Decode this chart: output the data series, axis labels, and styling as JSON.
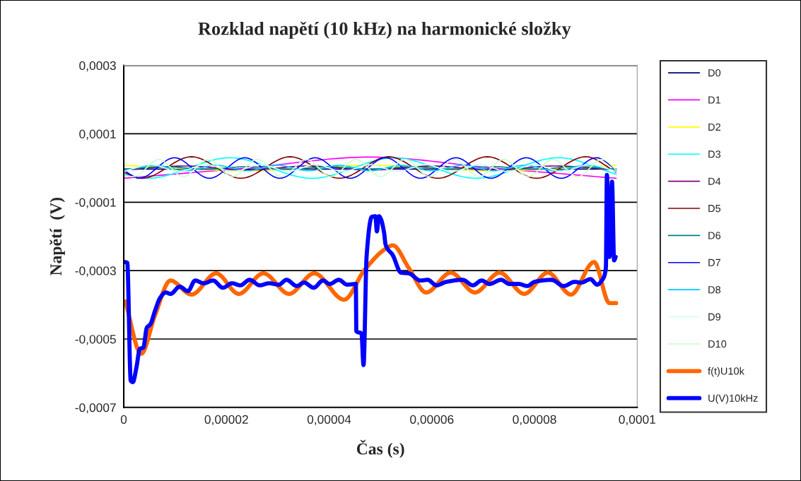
{
  "chart_data": {
    "type": "line",
    "title": "Rozklad napětí (10 kHz) na harmonické složky",
    "xlabel": "Čas (s)",
    "ylabel": "Napětí  (V)",
    "xlim": [
      0,
      0.0001
    ],
    "xticks": [
      0,
      {
        "value": 2e-05,
        "label": "0,00002"
      },
      {
        "value": 4e-05,
        "label": "0,00004"
      },
      {
        "value": 6e-05,
        "label": "0,00006"
      },
      {
        "value": 8e-05,
        "label": "0,00008"
      },
      {
        "value": 0.0001,
        "label": "0,0001"
      }
    ],
    "ylim": [
      -0.0007,
      0.0003
    ],
    "yticks": [
      {
        "value": -0.0007,
        "label": "-0,0007"
      },
      {
        "value": -0.0005,
        "label": "-0,0005"
      },
      {
        "value": -0.0003,
        "label": "-0,0003"
      },
      {
        "value": -0.0001,
        "label": "-0,0001"
      },
      {
        "value": 0.0001,
        "label": "0,0001"
      },
      {
        "value": 0.0003,
        "label": "0,0003"
      }
    ],
    "grid": "y",
    "legend": "right",
    "marker": "none",
    "line_style": "solid",
    "series": [
      {
        "name": "D0",
        "color": "#000080",
        "x": [
          0,
          9.59e-05
        ],
        "values": [
          -3e-06,
          -3e-06
        ]
      },
      {
        "name": "D1",
        "color": "#ff00ff",
        "x": [
          0,
          2.4e-05,
          4.8e-05,
          7.2e-05,
          9.59e-05
        ],
        "values": [
          -3e-05,
          0,
          3.2e-05,
          0,
          -3e-05
        ]
      },
      {
        "name": "D2",
        "color": "#ffff00",
        "x": [
          0,
          2.4e-05,
          4.8e-05,
          7.2e-05,
          9.59e-05
        ],
        "values": [
          8e-06,
          -8e-06,
          8e-06,
          -8e-06,
          8e-06
        ]
      },
      {
        "name": "D3",
        "color": "#00ffff",
        "x": [
          3e-07,
          4.7e-06,
          2.07e-05,
          3.67e-05,
          5.27e-05,
          6.87e-05,
          8.47e-05,
          9.59e-05
        ],
        "values": [
          -2e-05,
          -3e-05,
          3e-05,
          -3e-05,
          3e-05,
          -3e-05,
          3e-05,
          -1.8e-05
        ]
      },
      {
        "name": "D4",
        "color": "#800080",
        "x": [
          0,
          1.2e-05,
          2.4e-05,
          3.6e-05,
          4.8e-05,
          6e-05,
          7.2e-05,
          8.4e-05,
          9.59e-05
        ],
        "values": [
          -6e-06,
          6e-06,
          -6e-06,
          6e-06,
          -6e-06,
          6e-06,
          -6e-06,
          6e-06,
          -6e-06
        ]
      },
      {
        "name": "D5",
        "color": "#800000",
        "x": [
          3e-07,
          3.6e-06,
          1.32e-05,
          2.28e-05,
          3.24e-05,
          4.2e-05,
          5.16e-05,
          6.12e-05,
          7.08e-05,
          8.04e-05,
          9e-05,
          9.59e-05
        ],
        "values": [
          -1.5e-05,
          -3e-05,
          3.3e-05,
          -3e-05,
          3.3e-05,
          -3e-05,
          3.3e-05,
          -3e-05,
          3.3e-05,
          -3e-05,
          3.3e-05,
          -1.2e-05
        ]
      },
      {
        "name": "D6",
        "color": "#008080",
        "x": [
          0,
          8e-06,
          1.6e-05,
          2.4e-05,
          3.2e-05,
          4e-05,
          4.8e-05,
          5.6e-05,
          6.4e-05,
          7.2e-05,
          8e-05,
          8.8e-05,
          9.59e-05
        ],
        "values": [
          -4e-06,
          4e-06,
          -4e-06,
          4e-06,
          -4e-06,
          4e-06,
          -4e-06,
          4e-06,
          -4e-06,
          4e-06,
          -4e-06,
          4e-06,
          -4e-06
        ]
      },
      {
        "name": "D7",
        "color": "#0000ff",
        "x": [
          3e-07,
          3e-06,
          9.9e-06,
          1.67e-05,
          2.36e-05,
          3.04e-05,
          3.73e-05,
          4.41e-05,
          5.1e-05,
          5.78e-05,
          6.47e-05,
          7.15e-05,
          7.84e-05,
          8.52e-05,
          9.21e-05,
          9.59e-05
        ],
        "values": [
          -1e-05,
          -3e-05,
          3e-05,
          -3e-05,
          3e-05,
          -3e-05,
          3e-05,
          -3e-05,
          3e-05,
          -3e-05,
          3e-05,
          -3e-05,
          3e-05,
          -3e-05,
          3e-05,
          -5e-06
        ]
      },
      {
        "name": "D8",
        "color": "#00ccff",
        "x": [
          0,
          6e-06,
          1.2e-05,
          1.8e-05,
          2.4e-05,
          3e-05,
          3.6e-05,
          4.2e-05,
          4.8e-05,
          5.4e-05,
          6e-05,
          6.6e-05,
          7.2e-05,
          7.8e-05,
          8.4e-05,
          9e-05,
          9.59e-05
        ],
        "values": [
          -8e-06,
          8e-06,
          -8e-06,
          8e-06,
          -8e-06,
          8e-06,
          -8e-06,
          8e-06,
          -8e-06,
          8e-06,
          -8e-06,
          8e-06,
          -8e-06,
          8e-06,
          -8e-06,
          8e-06,
          -8e-06
        ]
      },
      {
        "name": "D9",
        "color": "#ccffff",
        "x": [
          0,
          5.3e-06,
          1.07e-05,
          1.6e-05,
          2.13e-05,
          2.67e-05,
          3.2e-05,
          3.73e-05,
          4.27e-05,
          4.8e-05,
          5.33e-05,
          5.87e-05,
          6.4e-05,
          6.93e-05,
          7.47e-05,
          8e-05,
          8.53e-05,
          9.07e-05,
          9.59e-05
        ],
        "values": [
          -1e-05,
          1e-05,
          -1e-05,
          1e-05,
          -1e-05,
          1e-05,
          -1e-05,
          1e-05,
          -1e-05,
          1e-05,
          -1e-05,
          1e-05,
          -1e-05,
          1e-05,
          -1e-05,
          1e-05,
          -1e-05,
          1e-05,
          -1e-05
        ]
      },
      {
        "name": "D10",
        "color": "#ccffcc",
        "x": [
          0,
          2e-06,
          6.8e-06,
          1.16e-05,
          1.64e-05,
          2.12e-05,
          2.6e-05,
          3.08e-05,
          3.56e-05,
          4.04e-05,
          4.52e-05,
          5e-05,
          5.48e-05,
          5.96e-05,
          6.44e-05,
          6.92e-05,
          7.4e-05,
          7.88e-05,
          8.36e-05,
          8.84e-05,
          9.32e-05,
          9.59e-05
        ],
        "values": [
          -2.3e-05,
          -2.5e-05,
          2.5e-05,
          -2.5e-05,
          2.5e-05,
          -2.5e-05,
          2.5e-05,
          -2.5e-05,
          2.5e-05,
          -2.5e-05,
          2.5e-05,
          -2.5e-05,
          2.5e-05,
          -2.5e-05,
          2.5e-05,
          -2.5e-05,
          2.5e-05,
          -2.5e-05,
          2.5e-05,
          -2.5e-05,
          2.5e-05,
          -5e-06
        ]
      },
      {
        "name": "f(t)U10k",
        "color": "#ff6600",
        "x": [
          3e-07,
          3.4e-06,
          6.1e-06,
          9.1e-06,
          1.32e-05,
          1.8e-05,
          2.24e-05,
          2.72e-05,
          3.22e-05,
          3.71e-05,
          4.29e-05,
          4.69e-05,
          5.1e-05,
          5.24e-05,
          5.55e-05,
          5.89e-05,
          6.37e-05,
          6.84e-05,
          7.32e-05,
          7.8e-05,
          8.26e-05,
          8.71e-05,
          9.16e-05,
          9.46e-05,
          9.59e-05
        ],
        "values": [
          -0.00039,
          -0.000543,
          -0.00043,
          -0.000329,
          -0.00037,
          -0.000308,
          -0.000368,
          -0.000308,
          -0.000368,
          -0.000308,
          -0.000385,
          -0.000298,
          -0.000236,
          -0.000226,
          -0.000292,
          -0.000364,
          -0.000306,
          -0.000364,
          -0.000306,
          -0.000368,
          -0.000306,
          -0.00037,
          -0.000275,
          -0.000395,
          -0.000395
        ]
      },
      {
        "name": "U(V)10kHz",
        "color": "#0000ff",
        "x": [
          3e-07,
          6.8e-07,
          1.36e-06,
          1.77e-06,
          2.45e-06,
          3.13e-06,
          3.81e-06,
          4.49e-06,
          5.17e-06,
          6.12e-06,
          7.07e-06,
          8.16e-06,
          9.12e-06,
          1.09e-05,
          1.25e-05,
          1.39e-05,
          1.56e-05,
          1.74e-05,
          1.93e-05,
          2.11e-05,
          2.27e-05,
          2.45e-05,
          2.65e-05,
          2.83e-05,
          3.02e-05,
          3.17e-05,
          3.37e-05,
          3.51e-05,
          3.7e-05,
          3.88e-05,
          4.01e-05,
          4.19e-05,
          4.35e-05,
          4.52e-05,
          4.53e-05,
          4.63e-05,
          4.67e-05,
          4.73e-05,
          4.83e-05,
          4.9e-05,
          4.93e-05,
          4.97e-05,
          5.01e-05,
          5.07e-05,
          5.1e-05,
          5.24e-05,
          5.4e-05,
          5.55e-05,
          5.78e-05,
          5.92e-05,
          6.09e-05,
          6.28e-05,
          6.6e-05,
          6.8e-05,
          6.97e-05,
          7.12e-05,
          7.35e-05,
          7.51e-05,
          7.69e-05,
          7.86e-05,
          8e-05,
          8.33e-05,
          8.57e-05,
          8.78e-05,
          8.91e-05,
          9.09e-05,
          9.22e-05,
          9.32e-05,
          9.39e-05,
          9.41e-05,
          9.46e-05,
          9.51e-05,
          9.55e-05,
          9.58e-05
        ],
        "values": [
          -0.000275,
          -0.000277,
          -0.000622,
          -0.000626,
          -0.000585,
          -0.000529,
          -0.000525,
          -0.000467,
          -0.000457,
          -0.000416,
          -0.00038,
          -0.000364,
          -0.000368,
          -0.000347,
          -0.00036,
          -0.000329,
          -0.000337,
          -0.000329,
          -0.00035,
          -0.000337,
          -0.000343,
          -0.000327,
          -0.000343,
          -0.000337,
          -0.000341,
          -0.000327,
          -0.000345,
          -0.000335,
          -0.00035,
          -0.000329,
          -0.000339,
          -0.000327,
          -0.000341,
          -0.000339,
          -0.000477,
          -0.000484,
          -0.000576,
          -0.000257,
          -0.000143,
          -0.000141,
          -0.000185,
          -0.000141,
          -0.00015,
          -0.000189,
          -0.000224,
          -0.000255,
          -0.000306,
          -0.000308,
          -0.000329,
          -0.000327,
          -0.000343,
          -0.000333,
          -0.000327,
          -0.000343,
          -0.000329,
          -0.000339,
          -0.000327,
          -0.000339,
          -0.000339,
          -0.000345,
          -0.000333,
          -0.000327,
          -0.000345,
          -0.000333,
          -0.000335,
          -0.000325,
          -0.000341,
          -0.000327,
          -0.000292,
          -2e-05,
          -0.00026,
          -4e-05,
          -0.00027,
          -0.00026
        ]
      }
    ]
  }
}
